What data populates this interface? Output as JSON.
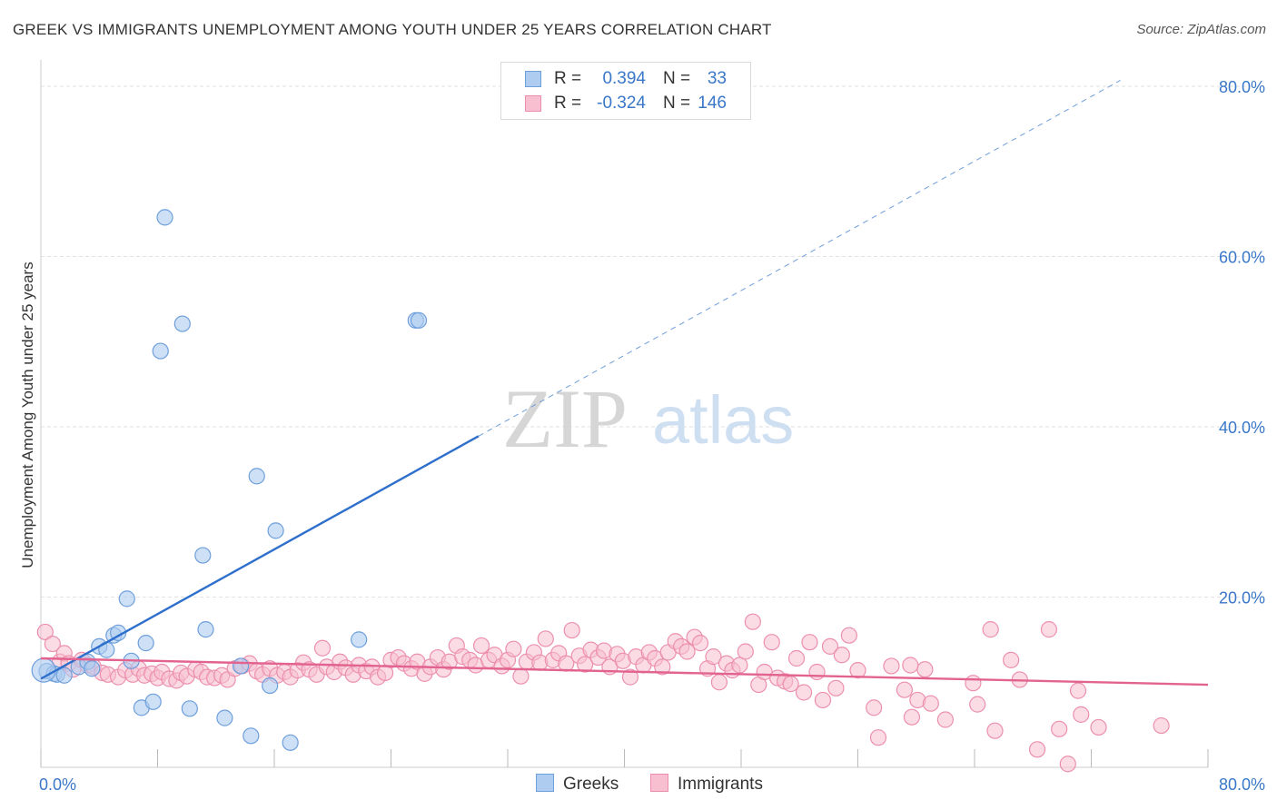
{
  "title": "GREEK VS IMMIGRANTS UNEMPLOYMENT AMONG YOUTH UNDER 25 YEARS CORRELATION CHART",
  "source": "Source: ZipAtlas.com",
  "watermark": {
    "zip": "ZIP",
    "atlas": "atlas"
  },
  "legend": {
    "rows": [
      {
        "r_label": "R =",
        "r_value": "0.394",
        "n_label": "N =",
        "n_value": "33"
      },
      {
        "r_label": "R =",
        "r_value": "-0.324",
        "n_label": "N =",
        "n_value": "146"
      }
    ]
  },
  "bottom_legend": {
    "greeks": "Greeks",
    "immigrants": "Immigrants"
  },
  "colors": {
    "greeks_fill": "#aecbf0",
    "greeks_stroke": "#6d9fdc",
    "greeks_line": "#2e6fcc",
    "immigrants_fill": "#f8bfd0",
    "immigrants_stroke": "#ec8fae",
    "immigrants_line": "#e2638f",
    "axis_text": "#3a77c9",
    "grid": "#e2e2e2"
  },
  "chart_data": {
    "type": "scatter",
    "title": "GREEK VS IMMIGRANTS UNEMPLOYMENT AMONG YOUTH UNDER 25 YEARS CORRELATION CHART",
    "xlabel": "",
    "ylabel": "Unemployment Among Youth under 25 years",
    "xlim": [
      0,
      80
    ],
    "ylim": [
      0,
      80
    ],
    "x_tick_labels": [
      "0.0%",
      "80.0%"
    ],
    "y_tick_labels": [
      "20.0%",
      "40.0%",
      "60.0%",
      "80.0%"
    ],
    "y_ticks": [
      20,
      40,
      60,
      80
    ],
    "grid": true,
    "legend_position": "top-center",
    "series": [
      {
        "name": "Greeks",
        "r": 0.394,
        "n": 33,
        "trend": {
          "x0": 0,
          "y0": 10.4,
          "x1": 30,
          "y1": 38.9,
          "dash_to_x": 74,
          "dash_to_y": 80.7
        },
        "points": [
          [
            0.4,
            11.3
          ],
          [
            0.9,
            11.0
          ],
          [
            1.1,
            10.9
          ],
          [
            1.6,
            10.8
          ],
          [
            2.6,
            11.8
          ],
          [
            3.2,
            12.4
          ],
          [
            3.5,
            11.6
          ],
          [
            4.0,
            14.2
          ],
          [
            4.5,
            13.8
          ],
          [
            5.0,
            15.5
          ],
          [
            5.3,
            15.8
          ],
          [
            5.9,
            19.8
          ],
          [
            6.2,
            12.5
          ],
          [
            6.9,
            7.0
          ],
          [
            7.2,
            14.6
          ],
          [
            7.7,
            7.7
          ],
          [
            8.2,
            48.9
          ],
          [
            8.5,
            64.6
          ],
          [
            9.7,
            52.1
          ],
          [
            10.2,
            6.9
          ],
          [
            11.1,
            24.9
          ],
          [
            11.3,
            16.2
          ],
          [
            12.6,
            5.8
          ],
          [
            13.7,
            11.9
          ],
          [
            14.4,
            3.7
          ],
          [
            14.8,
            34.2
          ],
          [
            15.7,
            9.6
          ],
          [
            16.1,
            27.8
          ],
          [
            17.1,
            2.9
          ],
          [
            21.8,
            15.0
          ],
          [
            25.7,
            52.5
          ],
          [
            25.9,
            52.5
          ],
          [
            0.2,
            11.4
          ]
        ]
      },
      {
        "name": "Immigrants",
        "r": -0.324,
        "n": 146,
        "trend": {
          "x0": 0,
          "y0": 12.8,
          "x1": 80,
          "y1": 9.7
        },
        "points": [
          [
            0.3,
            15.9
          ],
          [
            0.8,
            14.5
          ],
          [
            1.3,
            12.4
          ],
          [
            1.6,
            13.4
          ],
          [
            1.9,
            12.2
          ],
          [
            2.2,
            11.5
          ],
          [
            2.8,
            12.6
          ],
          [
            3.2,
            12.0
          ],
          [
            3.6,
            11.8
          ],
          [
            4.2,
            11.1
          ],
          [
            4.6,
            10.9
          ],
          [
            5.3,
            10.6
          ],
          [
            5.8,
            11.4
          ],
          [
            6.3,
            10.9
          ],
          [
            6.7,
            11.6
          ],
          [
            7.1,
            10.8
          ],
          [
            7.6,
            11.0
          ],
          [
            8.0,
            10.5
          ],
          [
            8.3,
            11.2
          ],
          [
            8.8,
            10.4
          ],
          [
            9.3,
            10.2
          ],
          [
            9.6,
            11.1
          ],
          [
            10.0,
            10.7
          ],
          [
            10.6,
            11.5
          ],
          [
            11.0,
            11.2
          ],
          [
            11.4,
            10.6
          ],
          [
            11.9,
            10.5
          ],
          [
            12.4,
            10.8
          ],
          [
            12.8,
            10.3
          ],
          [
            13.3,
            11.6
          ],
          [
            13.8,
            11.9
          ],
          [
            14.3,
            12.2
          ],
          [
            14.8,
            11.3
          ],
          [
            15.2,
            10.9
          ],
          [
            15.7,
            11.6
          ],
          [
            16.2,
            10.8
          ],
          [
            16.7,
            11.2
          ],
          [
            17.1,
            10.6
          ],
          [
            17.6,
            11.4
          ],
          [
            18.0,
            12.3
          ],
          [
            18.4,
            11.5
          ],
          [
            18.9,
            10.9
          ],
          [
            19.3,
            14.0
          ],
          [
            19.6,
            11.8
          ],
          [
            20.1,
            11.2
          ],
          [
            20.5,
            12.4
          ],
          [
            20.9,
            11.7
          ],
          [
            21.4,
            10.9
          ],
          [
            21.8,
            12.0
          ],
          [
            22.3,
            11.3
          ],
          [
            22.7,
            11.8
          ],
          [
            23.1,
            10.6
          ],
          [
            23.6,
            11.1
          ],
          [
            24.0,
            12.6
          ],
          [
            24.5,
            12.9
          ],
          [
            24.9,
            12.2
          ],
          [
            25.4,
            11.6
          ],
          [
            25.8,
            12.4
          ],
          [
            26.3,
            11.0
          ],
          [
            26.7,
            11.8
          ],
          [
            27.2,
            12.9
          ],
          [
            27.6,
            11.5
          ],
          [
            28.0,
            12.4
          ],
          [
            28.5,
            14.3
          ],
          [
            28.9,
            13.0
          ],
          [
            29.4,
            12.6
          ],
          [
            29.8,
            12.0
          ],
          [
            30.2,
            14.3
          ],
          [
            30.7,
            12.6
          ],
          [
            31.1,
            13.2
          ],
          [
            31.6,
            11.9
          ],
          [
            32.0,
            12.6
          ],
          [
            32.4,
            13.9
          ],
          [
            32.9,
            10.7
          ],
          [
            33.3,
            12.4
          ],
          [
            33.8,
            13.5
          ],
          [
            34.2,
            12.3
          ],
          [
            34.6,
            15.1
          ],
          [
            35.1,
            12.6
          ],
          [
            35.5,
            13.4
          ],
          [
            36.0,
            12.2
          ],
          [
            36.4,
            16.1
          ],
          [
            36.9,
            13.1
          ],
          [
            37.3,
            12.1
          ],
          [
            37.7,
            13.8
          ],
          [
            38.2,
            12.9
          ],
          [
            38.6,
            13.7
          ],
          [
            39.0,
            11.8
          ],
          [
            39.5,
            13.3
          ],
          [
            39.9,
            12.5
          ],
          [
            40.4,
            10.6
          ],
          [
            40.8,
            13.0
          ],
          [
            41.3,
            12.0
          ],
          [
            41.7,
            13.5
          ],
          [
            42.1,
            12.8
          ],
          [
            42.6,
            11.8
          ],
          [
            43.0,
            13.5
          ],
          [
            43.5,
            14.8
          ],
          [
            43.9,
            14.2
          ],
          [
            44.3,
            13.6
          ],
          [
            44.8,
            15.3
          ],
          [
            45.2,
            14.6
          ],
          [
            45.7,
            11.6
          ],
          [
            46.1,
            13.0
          ],
          [
            46.5,
            10.0
          ],
          [
            47.0,
            12.2
          ],
          [
            47.4,
            11.4
          ],
          [
            47.9,
            12.0
          ],
          [
            48.3,
            13.6
          ],
          [
            48.8,
            17.1
          ],
          [
            49.2,
            9.7
          ],
          [
            49.6,
            11.2
          ],
          [
            50.1,
            14.7
          ],
          [
            50.5,
            10.5
          ],
          [
            51.0,
            10.1
          ],
          [
            51.4,
            9.8
          ],
          [
            51.8,
            12.8
          ],
          [
            52.3,
            8.8
          ],
          [
            52.7,
            14.7
          ],
          [
            53.2,
            11.2
          ],
          [
            53.6,
            7.9
          ],
          [
            54.1,
            14.2
          ],
          [
            54.5,
            9.3
          ],
          [
            54.9,
            13.2
          ],
          [
            55.4,
            15.5
          ],
          [
            56.0,
            11.4
          ],
          [
            57.1,
            7.0
          ],
          [
            57.4,
            3.5
          ],
          [
            58.3,
            11.9
          ],
          [
            59.2,
            9.1
          ],
          [
            59.7,
            5.9
          ],
          [
            60.1,
            7.9
          ],
          [
            60.6,
            11.5
          ],
          [
            61.0,
            7.5
          ],
          [
            62.0,
            5.6
          ],
          [
            63.9,
            9.9
          ],
          [
            64.2,
            7.4
          ],
          [
            65.4,
            4.3
          ],
          [
            66.5,
            12.6
          ],
          [
            67.1,
            10.3
          ],
          [
            69.1,
            16.2
          ],
          [
            69.8,
            4.5
          ],
          [
            70.4,
            0.4
          ],
          [
            71.1,
            9.0
          ],
          [
            72.5,
            4.7
          ],
          [
            76.8,
            4.9
          ],
          [
            65.1,
            16.2
          ],
          [
            59.6,
            12.0
          ],
          [
            71.3,
            6.2
          ],
          [
            68.3,
            2.1
          ]
        ]
      }
    ]
  }
}
